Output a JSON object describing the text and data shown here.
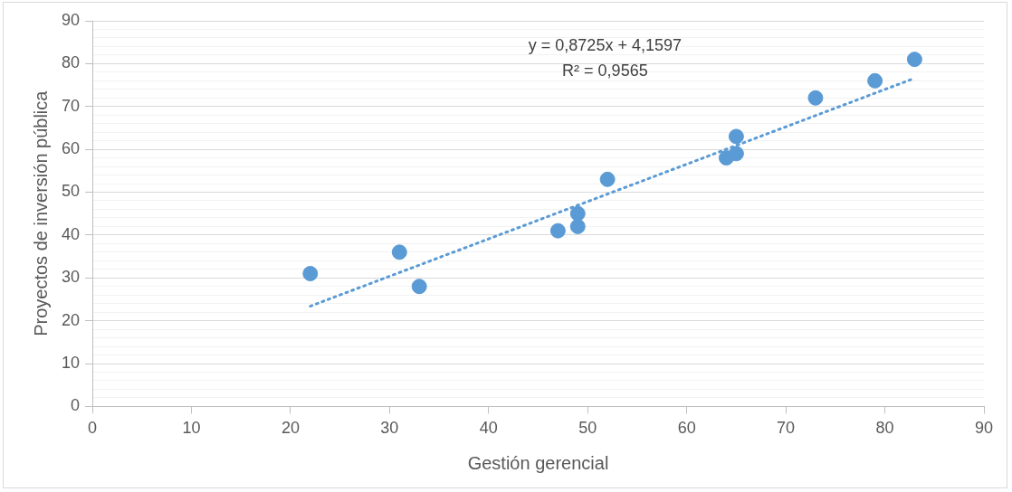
{
  "chart_data": {
    "type": "scatter",
    "xlabel": "Gestión gerencial",
    "ylabel": "Proyectos de inversión pública",
    "annotations": [
      "y = 0,8725x + 4,1597",
      "R² = 0,9565"
    ],
    "x": [
      22,
      31,
      33,
      47,
      49,
      49,
      52,
      64,
      65,
      65,
      73,
      79,
      83
    ],
    "series": [
      {
        "color": "#5b9bd5",
        "values": [
          31,
          36,
          28,
          41,
          45,
          42,
          53,
          58,
          63,
          59,
          72,
          76,
          81
        ]
      },
      {
        "type": "line",
        "color": "#5b9bd5",
        "line_style": "dotted",
        "marker": "none",
        "x": [
          22,
          83
        ],
        "values": [
          23.4,
          76.6
        ]
      }
    ],
    "marker": "circle",
    "xlim": [
      0,
      90
    ],
    "xticks": [
      0,
      10,
      20,
      30,
      40,
      50,
      60,
      70,
      80,
      90
    ],
    "ylim": [
      0,
      90
    ],
    "yticks": [
      0,
      {
        "value": 2,
        "label": null
      },
      {
        "value": 4,
        "label": null
      },
      {
        "value": 6,
        "label": null
      },
      {
        "value": 8,
        "label": null
      },
      10,
      {
        "value": 12,
        "label": null
      },
      {
        "value": 14,
        "label": null
      },
      {
        "value": 16,
        "label": null
      },
      {
        "value": 18,
        "label": null
      },
      20,
      {
        "value": 22,
        "label": null
      },
      {
        "value": 24,
        "label": null
      },
      {
        "value": 26,
        "label": null
      },
      {
        "value": 28,
        "label": null
      },
      30,
      {
        "value": 32,
        "label": null
      },
      {
        "value": 34,
        "label": null
      },
      {
        "value": 36,
        "label": null
      },
      {
        "value": 38,
        "label": null
      },
      40,
      {
        "value": 42,
        "label": null
      },
      {
        "value": 44,
        "label": null
      },
      {
        "value": 46,
        "label": null
      },
      {
        "value": 48,
        "label": null
      },
      50,
      {
        "value": 52,
        "label": null
      },
      {
        "value": 54,
        "label": null
      },
      {
        "value": 56,
        "label": null
      },
      {
        "value": 58,
        "label": null
      },
      60,
      {
        "value": 62,
        "label": null
      },
      {
        "value": 64,
        "label": null
      },
      {
        "value": 66,
        "label": null
      },
      {
        "value": 68,
        "label": null
      },
      70,
      {
        "value": 72,
        "label": null
      },
      {
        "value": 74,
        "label": null
      },
      {
        "value": 76,
        "label": null
      },
      {
        "value": 78,
        "label": null
      },
      80,
      {
        "value": 82,
        "label": null
      },
      {
        "value": 84,
        "label": null
      },
      {
        "value": 86,
        "label": null
      },
      {
        "value": 88,
        "label": null
      },
      90
    ],
    "grid": "y",
    "legend": false
  }
}
